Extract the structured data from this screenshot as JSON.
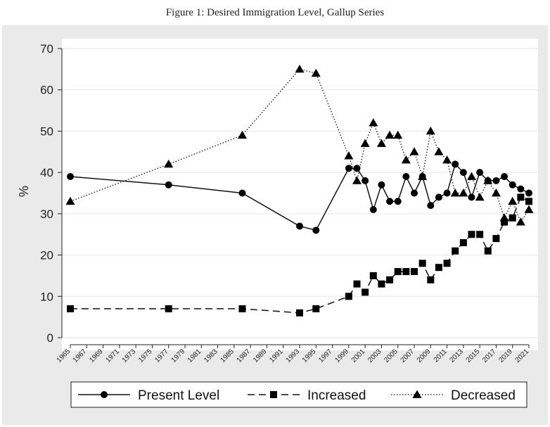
{
  "caption": "Figure 1: Desired Immigration Level, Gallup Series",
  "chart_data": {
    "type": "line",
    "ylabel": "%",
    "ylim": [
      0,
      70
    ],
    "yticks": [
      0,
      10,
      20,
      30,
      40,
      50,
      60,
      70
    ],
    "xlim": [
      1965,
      2021
    ],
    "xticks": [
      1965,
      1967,
      1969,
      1971,
      1973,
      1975,
      1977,
      1979,
      1981,
      1983,
      1985,
      1987,
      1989,
      1991,
      1993,
      1995,
      1997,
      1999,
      2001,
      2003,
      2005,
      2007,
      2009,
      2011,
      2013,
      2015,
      2017,
      2019,
      2021
    ],
    "grid": true,
    "legend_position": "bottom",
    "series": [
      {
        "name": "Present Level",
        "line_style": "solid",
        "marker": "circle",
        "x": [
          1965,
          1977,
          1986,
          1993,
          1995,
          1999,
          2000,
          2001,
          2002,
          2003,
          2004,
          2005,
          2006,
          2007,
          2008,
          2009,
          2010,
          2011,
          2012,
          2013,
          2014,
          2015,
          2016,
          2017,
          2018,
          2019,
          2020,
          2021
        ],
        "values": [
          39,
          37,
          35,
          27,
          26,
          41,
          41,
          38,
          31,
          37,
          33,
          33,
          39,
          35,
          39,
          32,
          34,
          35,
          42,
          40,
          34,
          40,
          38,
          38,
          39,
          37,
          36,
          35
        ]
      },
      {
        "name": "Increased",
        "line_style": "dashed",
        "marker": "square",
        "x": [
          1965,
          1977,
          1986,
          1993,
          1995,
          1999,
          2000,
          2001,
          2002,
          2003,
          2004,
          2005,
          2006,
          2007,
          2008,
          2009,
          2010,
          2011,
          2012,
          2013,
          2014,
          2015,
          2016,
          2017,
          2018,
          2019,
          2020,
          2021
        ],
        "values": [
          7,
          7,
          7,
          6,
          7,
          10,
          13,
          11,
          15,
          13,
          14,
          16,
          16,
          16,
          18,
          14,
          17,
          18,
          21,
          23,
          25,
          25,
          21,
          24,
          28,
          29,
          34,
          33
        ]
      },
      {
        "name": "Decreased",
        "line_style": "dotted",
        "marker": "triangle",
        "x": [
          1965,
          1977,
          1986,
          1993,
          1995,
          1999,
          2000,
          2001,
          2002,
          2003,
          2004,
          2005,
          2006,
          2007,
          2008,
          2009,
          2010,
          2011,
          2012,
          2013,
          2014,
          2015,
          2016,
          2017,
          2018,
          2019,
          2020,
          2021
        ],
        "values": [
          33,
          42,
          49,
          65,
          64,
          44,
          38,
          47,
          52,
          47,
          49,
          49,
          43,
          45,
          39,
          50,
          45,
          43,
          35,
          35,
          39,
          34,
          38,
          35,
          29,
          33,
          28,
          31
        ]
      }
    ]
  }
}
